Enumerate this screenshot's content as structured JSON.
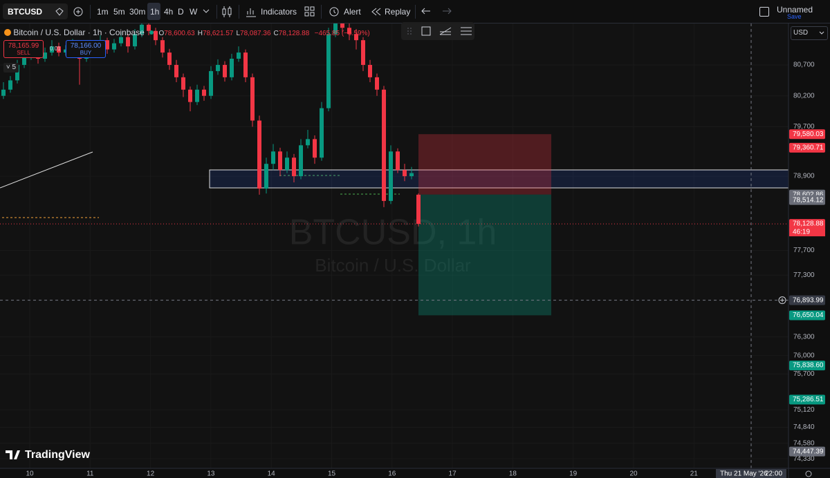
{
  "toolbar": {
    "symbol": "BTCUSD",
    "timeframes": [
      "1m",
      "5m",
      "30m",
      "1h",
      "4h",
      "D",
      "W"
    ],
    "indicators": "Indicators",
    "alert": "Alert",
    "replay": "Replay",
    "layout_name": "Unnamed",
    "save": "Save"
  },
  "legend": {
    "title": "Bitcoin / U.S. Dollar · 1h · Coinbase",
    "ohlc": [
      {
        "key": "O",
        "text": "78,600.63"
      },
      {
        "key": "H",
        "text": "78,621.57"
      },
      {
        "key": "L",
        "text": "78,087.36"
      },
      {
        "key": "C",
        "text": "78,128.88"
      }
    ],
    "change": "−465.85 (−0.59%)"
  },
  "trade": {
    "sell_price": "78,165.99",
    "sell": "SELL",
    "spread": "0.01",
    "buy_price": "78,166.00",
    "buy": "BUY"
  },
  "indicator_count": "5",
  "watermark": {
    "title": "BTCUSD, 1h",
    "subtitle": "Bitcoin / U.S. Dollar"
  },
  "brand": "TradingView",
  "currency": "USD",
  "chart_data": {
    "type": "candlestick",
    "colors": {
      "up": "#089981",
      "down": "#f23645"
    },
    "candles": [
      [
        80200,
        80420,
        80150,
        80300
      ],
      [
        80300,
        80520,
        80250,
        80450
      ],
      [
        80450,
        80780,
        80400,
        80700
      ],
      [
        80700,
        80920,
        80650,
        80850
      ],
      [
        80850,
        81050,
        80780,
        80950
      ],
      [
        80950,
        81000,
        80720,
        80800
      ],
      [
        80800,
        80980,
        80750,
        80900
      ],
      [
        80900,
        81100,
        80850,
        81000
      ],
      [
        81000,
        81060,
        80840,
        80900
      ],
      [
        80900,
        81020,
        80850,
        80950
      ],
      [
        80950,
        81120,
        80900,
        81050
      ],
      [
        81050,
        81090,
        80380,
        80800
      ],
      [
        80800,
        80970,
        80750,
        80900
      ],
      [
        80900,
        81080,
        80850,
        81000
      ],
      [
        81000,
        81180,
        80950,
        81100
      ],
      [
        81100,
        81140,
        80880,
        80950
      ],
      [
        80950,
        81120,
        80900,
        81050
      ],
      [
        81050,
        81230,
        81000,
        81150
      ],
      [
        81150,
        81200,
        80900,
        81000
      ],
      [
        81000,
        81280,
        80950,
        81200
      ],
      [
        81200,
        81500,
        81150,
        81350
      ],
      [
        81350,
        81420,
        81180,
        81250
      ],
      [
        81250,
        81300,
        81020,
        81100
      ],
      [
        81100,
        81150,
        80820,
        80900
      ],
      [
        80900,
        80960,
        80620,
        80700
      ],
      [
        80700,
        80780,
        80420,
        80500
      ],
      [
        80500,
        80560,
        80180,
        80300
      ],
      [
        80300,
        80350,
        79950,
        80100
      ],
      [
        80100,
        80380,
        80050,
        80300
      ],
      [
        80300,
        80360,
        80120,
        80200
      ],
      [
        80200,
        80680,
        80150,
        80600
      ],
      [
        80600,
        80790,
        80540,
        80700
      ],
      [
        80700,
        80760,
        80430,
        80500
      ],
      [
        80500,
        80880,
        80450,
        80800
      ],
      [
        80800,
        81000,
        80750,
        80900
      ],
      [
        80900,
        80950,
        80420,
        80500
      ],
      [
        80500,
        80560,
        79700,
        79800
      ],
      [
        79800,
        79880,
        78600,
        78700
      ],
      [
        78700,
        79200,
        78620,
        79100
      ],
      [
        79100,
        79420,
        79000,
        79300
      ],
      [
        79300,
        79360,
        78900,
        79000
      ],
      [
        79000,
        79300,
        78950,
        79200
      ],
      [
        79200,
        79260,
        78800,
        78900
      ],
      [
        78900,
        79500,
        78850,
        79400
      ],
      [
        79400,
        79650,
        79350,
        79500
      ],
      [
        79500,
        79560,
        79100,
        79200
      ],
      [
        79200,
        80100,
        79150,
        80000
      ],
      [
        80000,
        81300,
        79950,
        81200
      ],
      [
        81200,
        81600,
        81150,
        81400
      ],
      [
        81400,
        81500,
        81200,
        81300
      ],
      [
        81300,
        81380,
        81100,
        81200
      ],
      [
        81200,
        81280,
        80950,
        81100
      ],
      [
        81100,
        81150,
        80600,
        80700
      ],
      [
        80700,
        80780,
        80420,
        80500
      ],
      [
        80500,
        80560,
        80200,
        80300
      ],
      [
        80300,
        80360,
        78400,
        78500
      ],
      [
        78500,
        79400,
        78450,
        79300
      ],
      [
        79300,
        79350,
        78950,
        79000
      ],
      [
        79000,
        79100,
        78820,
        78900
      ],
      [
        78900,
        79050,
        78850,
        78950
      ],
      [
        78600.63,
        78621.57,
        78087.36,
        78128.88
      ]
    ],
    "ylim": [
      74175,
      81370
    ],
    "yticks": [
      {
        "value": 80700,
        "label": "80,700"
      },
      {
        "value": 80200,
        "label": "80,200"
      },
      {
        "value": 79700,
        "label": "79,700"
      },
      {
        "value": 78900,
        "label": "78,900"
      },
      {
        "value": 77700,
        "label": "77,700"
      },
      {
        "value": 77300,
        "label": "77,300"
      },
      {
        "value": 76300,
        "label": "76,300"
      },
      {
        "value": 76000,
        "label": "76,000"
      },
      {
        "value": 75700,
        "label": "75,700"
      },
      {
        "value": 75120,
        "label": "75,120"
      },
      {
        "value": 74840,
        "label": "74,840"
      },
      {
        "value": 74580,
        "label": "74,580"
      },
      {
        "value": 74330,
        "label": "74,330"
      }
    ],
    "grid": true,
    "x_labels": [
      "10",
      "11",
      "12",
      "13",
      "14",
      "15",
      "16",
      "17",
      "18",
      "19",
      "20",
      "21"
    ],
    "crosshair_time": "Thu 21 May '26",
    "crosshair_hour": "22:00",
    "price_labels": [
      {
        "value": 79580.03,
        "label": "79,580.03",
        "color": "#f23645"
      },
      {
        "value": 79360.71,
        "label": "79,360.71",
        "color": "#f23645"
      },
      {
        "value": 78602.86,
        "label": "78,602.86",
        "color": "#6a6d78"
      },
      {
        "value": 78514.12,
        "label": "78,514.12",
        "color": "#6a6d78"
      },
      {
        "value": 78128.88,
        "label": "78,128.88",
        "color": "#f23645"
      },
      {
        "value": 76893.99,
        "label": "76,893.99",
        "color": "#363a45"
      },
      {
        "value": 76650.04,
        "label": "76,650.04",
        "color": "#089981"
      },
      {
        "value": 75838.6,
        "label": "75,838.60",
        "color": "#089981"
      },
      {
        "value": 75286.51,
        "label": "75,286.51",
        "color": "#089981"
      },
      {
        "value": 74447.39,
        "label": "74,447.39",
        "color": "#6a6d78"
      }
    ],
    "countdown": "46:19"
  }
}
